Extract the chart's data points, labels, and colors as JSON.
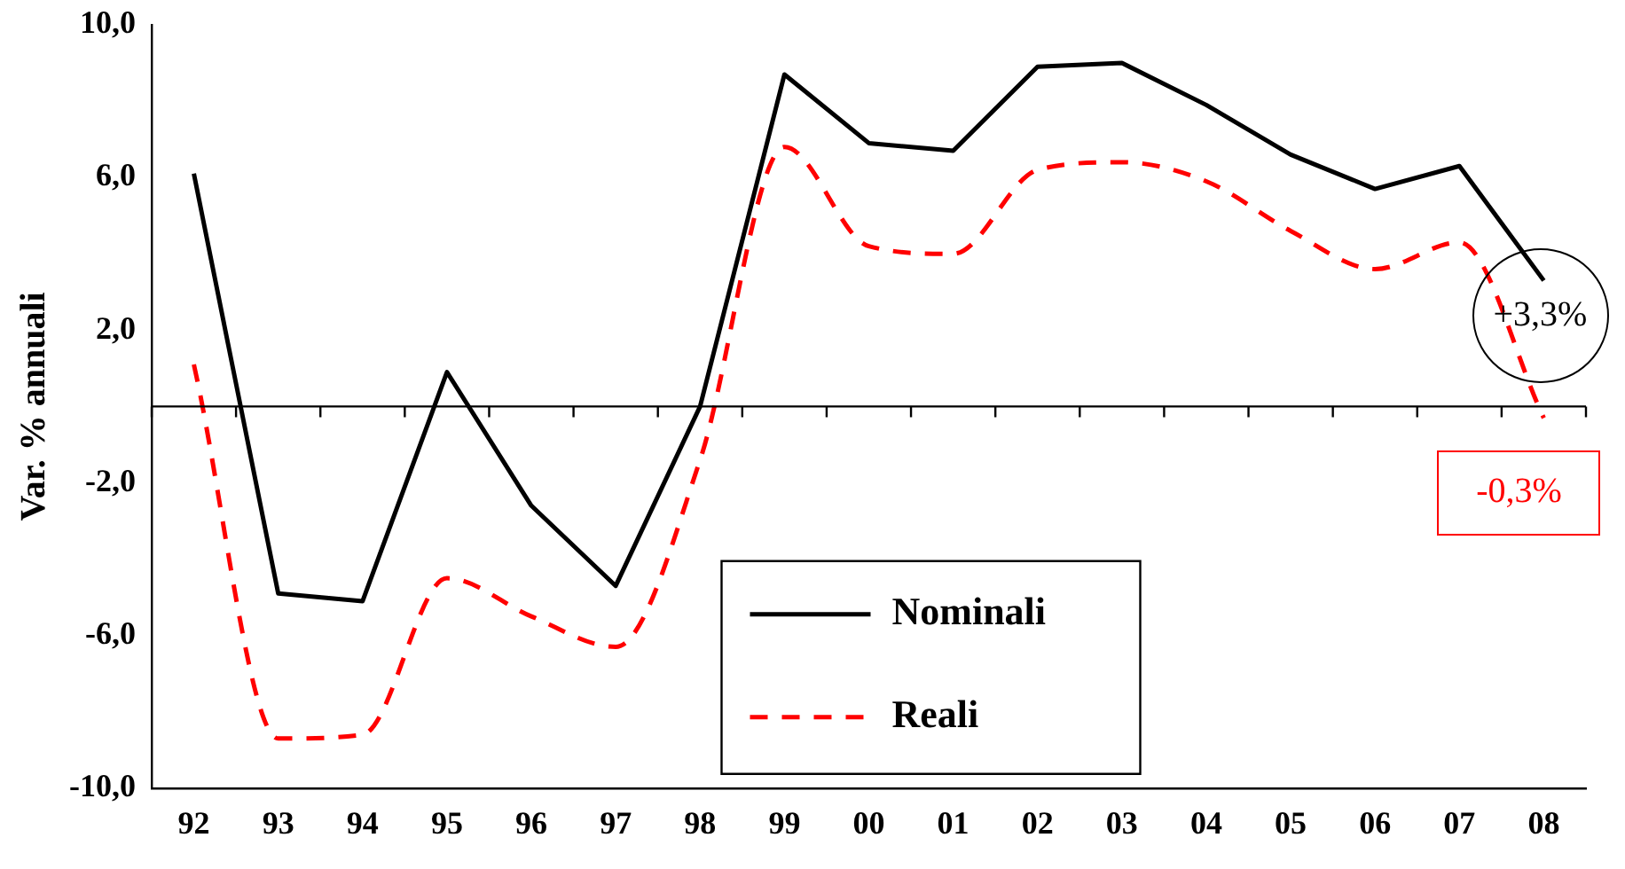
{
  "chart_data": {
    "type": "line",
    "ylabel": "Var. % annuali",
    "categories": [
      "92",
      "93",
      "94",
      "95",
      "96",
      "97",
      "98",
      "99",
      "00",
      "01",
      "02",
      "03",
      "04",
      "05",
      "06",
      "07",
      "08"
    ],
    "series": [
      {
        "name": "Nominali",
        "color": "#000000",
        "line_style": "solid",
        "values": [
          6.1,
          -4.9,
          -5.1,
          0.9,
          -2.6,
          -4.7,
          0.0,
          8.7,
          6.9,
          6.7,
          8.9,
          9.0,
          7.9,
          6.6,
          5.7,
          6.3,
          3.3
        ]
      },
      {
        "name": "Reali",
        "color": "#ff0000",
        "line_style": "dashed",
        "values": [
          1.1,
          -8.7,
          -8.6,
          -4.5,
          -5.5,
          -6.3,
          -1.4,
          6.8,
          4.2,
          4.0,
          6.2,
          6.4,
          5.9,
          4.6,
          3.6,
          4.3,
          -0.3
        ]
      }
    ],
    "ylim": [
      -10,
      10
    ],
    "yticks": [
      {
        "value": 10,
        "label": "10,0"
      },
      {
        "value": 6,
        "label": "6,0"
      },
      {
        "value": 2,
        "label": "2,0"
      },
      {
        "value": -2,
        "label": "-2,0"
      },
      {
        "value": -6,
        "label": "-6,0"
      },
      {
        "value": -10,
        "label": "-10,0"
      }
    ],
    "ref_lines": [
      {
        "axis": "y",
        "value": 0,
        "color": "#000000"
      }
    ],
    "annotations": [
      {
        "text": "+3,3%",
        "x": "08",
        "y": 3.3
      },
      {
        "text": "-0,3%",
        "x": "08",
        "y": -0.3
      }
    ],
    "grid": false,
    "legend": "bottom",
    "marker": "none"
  }
}
